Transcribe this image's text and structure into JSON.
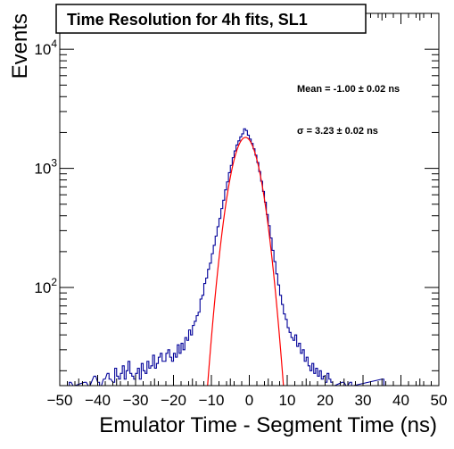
{
  "chart_data": {
    "type": "line",
    "title": "Time Resolution for 4h fits, SL1",
    "xlabel": "Emulator Time - Segment Time (ns)",
    "ylabel": "Events",
    "xlim": [
      -50,
      50
    ],
    "ylim": [
      15,
      20000
    ],
    "y_scale": "log",
    "grid": false,
    "x_ticks": [
      -50,
      -40,
      -30,
      -20,
      -10,
      0,
      10,
      20,
      30,
      40,
      50
    ],
    "x_tick_labels": [
      "−50",
      "−40",
      "−30",
      "−20",
      "−10",
      "0",
      "10",
      "20",
      "30",
      "40",
      "50"
    ],
    "y_ticks": [
      {
        "value": 100,
        "base": "10",
        "exp": "2"
      },
      {
        "value": 1000,
        "base": "10",
        "exp": "3"
      },
      {
        "value": 10000,
        "base": "10",
        "exp": "4"
      }
    ],
    "annotations": [
      "Mean = -1.00 ± 0.02 ns",
      "σ = 3.23 ± 0.02 ns"
    ],
    "fit": {
      "amplitude": 1820,
      "mean": -1.0,
      "sigma": 3.23,
      "color": "#ff0000"
    },
    "histogram_color": "#000099",
    "histogram": {
      "bin_width": 0.5,
      "x_start": -50,
      "values": [
        0,
        0,
        0,
        0,
        0,
        0,
        0,
        0,
        0,
        0,
        0,
        0,
        0,
        0,
        0,
        0,
        0,
        0,
        0,
        0,
        0,
        0,
        0,
        0,
        0,
        0,
        0,
        0,
        0,
        0,
        0,
        0,
        0,
        0,
        0,
        0,
        0,
        0,
        0,
        0,
        0,
        0,
        0,
        0,
        0,
        0,
        0,
        0,
        0,
        0,
        0,
        0,
        0,
        0,
        0,
        0,
        0,
        0,
        0,
        0,
        0,
        0,
        0,
        0,
        0,
        0,
        0,
        0,
        0,
        0,
        0,
        0,
        0,
        0,
        0,
        0,
        0,
        0,
        0,
        0,
        0,
        0,
        0,
        0,
        0,
        0,
        0,
        0,
        0,
        0,
        0,
        0,
        0,
        0,
        0,
        0,
        0,
        0,
        0,
        0,
        0,
        0,
        0,
        0,
        0,
        0,
        0,
        0,
        0,
        0,
        0,
        0,
        0,
        0,
        0,
        0,
        0,
        0,
        0,
        0,
        0,
        0,
        0,
        0,
        0,
        0,
        0,
        0,
        0,
        0,
        0,
        0,
        0,
        0,
        0,
        0,
        0,
        0,
        0,
        0,
        0,
        0,
        0,
        0,
        0,
        0,
        0,
        0,
        0,
        0,
        0,
        0,
        0,
        0,
        0,
        0,
        0,
        0,
        0,
        0,
        0,
        0,
        0,
        0,
        0,
        0,
        0,
        0,
        0,
        0,
        0,
        0,
        0,
        0,
        0,
        0,
        0,
        0,
        0,
        0,
        0,
        0,
        0,
        0,
        0,
        0,
        0,
        0,
        0,
        0,
        0,
        0,
        0,
        0,
        0,
        0,
        0,
        0,
        0,
        0
      ],
      "_": null
    },
    "histogram_points": [
      [
        -47.5,
        16
      ],
      [
        -46.5,
        0
      ],
      [
        -43.5,
        16
      ],
      [
        -42.5,
        0
      ],
      [
        -41.0,
        18
      ],
      [
        -40.0,
        16
      ],
      [
        -39.5,
        0
      ],
      [
        -38.5,
        17
      ],
      [
        -37.5,
        19
      ],
      [
        -37.0,
        17
      ],
      [
        -36.0,
        16
      ],
      [
        -35.5,
        21
      ],
      [
        -35.0,
        18
      ],
      [
        -34.5,
        17
      ],
      [
        -34.0,
        19
      ],
      [
        -33.5,
        22
      ],
      [
        -33.0,
        17
      ],
      [
        -32.5,
        20
      ],
      [
        -32.0,
        24
      ],
      [
        -31.5,
        19
      ],
      [
        -31.0,
        18
      ],
      [
        -30.5,
        17
      ],
      [
        -30.0,
        19
      ],
      [
        -29.5,
        21
      ],
      [
        -29.0,
        17
      ],
      [
        -28.5,
        23
      ],
      [
        -28.0,
        20
      ],
      [
        -27.5,
        19
      ],
      [
        -27.0,
        24
      ],
      [
        -26.5,
        21
      ],
      [
        -26.0,
        22
      ],
      [
        -25.5,
        27
      ],
      [
        -25.0,
        21
      ],
      [
        -24.5,
        23
      ],
      [
        -24.0,
        26
      ],
      [
        -23.5,
        28
      ],
      [
        -23.0,
        24
      ],
      [
        -22.5,
        24
      ],
      [
        -22.0,
        28
      ],
      [
        -21.5,
        30
      ],
      [
        -21.0,
        26
      ],
      [
        -20.5,
        24
      ],
      [
        -20.0,
        28
      ],
      [
        -19.5,
        26
      ],
      [
        -19.0,
        33
      ],
      [
        -18.5,
        28
      ],
      [
        -18.0,
        34
      ],
      [
        -17.5,
        30
      ],
      [
        -17.0,
        38
      ],
      [
        -16.5,
        36
      ],
      [
        -16.0,
        44
      ],
      [
        -15.5,
        40
      ],
      [
        -15.0,
        48
      ],
      [
        -14.5,
        52
      ],
      [
        -14.0,
        58
      ],
      [
        -13.5,
        62
      ],
      [
        -13.0,
        80
      ],
      [
        -12.5,
        86
      ],
      [
        -12.0,
        108
      ],
      [
        -11.5,
        120
      ],
      [
        -11.0,
        142
      ],
      [
        -10.5,
        160
      ],
      [
        -10.0,
        192
      ],
      [
        -9.5,
        226
      ],
      [
        -9.0,
        270
      ],
      [
        -8.5,
        324
      ],
      [
        -8.0,
        380
      ],
      [
        -7.5,
        460
      ],
      [
        -7.0,
        540
      ],
      [
        -6.5,
        660
      ],
      [
        -6.0,
        770
      ],
      [
        -5.5,
        920
      ],
      [
        -5.0,
        1060
      ],
      [
        -4.5,
        1230
      ],
      [
        -4.0,
        1400
      ],
      [
        -3.5,
        1570
      ],
      [
        -3.0,
        1700
      ],
      [
        -2.5,
        1840
      ],
      [
        -2.0,
        1950
      ],
      [
        -1.5,
        2150
      ],
      [
        -1.0,
        2080
      ],
      [
        -0.5,
        1900
      ],
      [
        0.0,
        1760
      ],
      [
        0.5,
        1620
      ],
      [
        1.0,
        1460
      ],
      [
        1.5,
        1290
      ],
      [
        2.0,
        1120
      ],
      [
        2.5,
        940
      ],
      [
        3.0,
        780
      ],
      [
        3.5,
        640
      ],
      [
        4.0,
        520
      ],
      [
        4.5,
        410
      ],
      [
        5.0,
        330
      ],
      [
        5.5,
        260
      ],
      [
        6.0,
        205
      ],
      [
        6.5,
        165
      ],
      [
        7.0,
        130
      ],
      [
        7.5,
        105
      ],
      [
        8.0,
        86
      ],
      [
        8.5,
        72
      ],
      [
        9.0,
        60
      ],
      [
        9.5,
        54
      ],
      [
        10.0,
        46
      ],
      [
        10.5,
        42
      ],
      [
        11.0,
        38
      ],
      [
        11.5,
        36
      ],
      [
        12.0,
        40
      ],
      [
        12.5,
        32
      ],
      [
        13.0,
        34
      ],
      [
        13.5,
        28
      ],
      [
        14.0,
        30
      ],
      [
        14.5,
        24
      ],
      [
        15.0,
        26
      ],
      [
        15.5,
        22
      ],
      [
        16.0,
        20
      ],
      [
        16.5,
        23
      ],
      [
        17.0,
        19
      ],
      [
        17.5,
        21
      ],
      [
        18.0,
        18
      ],
      [
        18.5,
        20
      ],
      [
        19.0,
        17
      ],
      [
        19.5,
        18
      ],
      [
        20.0,
        16
      ],
      [
        20.5,
        19
      ],
      [
        21.0,
        17
      ],
      [
        21.5,
        16
      ],
      [
        22.0,
        0
      ],
      [
        24.5,
        16
      ],
      [
        25.5,
        0
      ],
      [
        26.5,
        16
      ],
      [
        27.0,
        0
      ],
      [
        35.0,
        17
      ],
      [
        35.5,
        0
      ]
    ]
  }
}
